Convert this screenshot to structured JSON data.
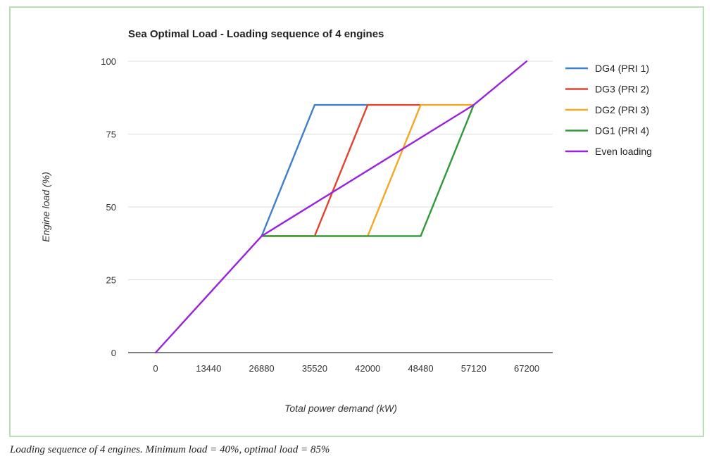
{
  "caption": "Loading sequence of 4 engines. Minimum load = 40%, optimal load = 85%",
  "chart_data": {
    "type": "line",
    "title": "Sea Optimal Load - Loading sequence of 4 engines",
    "xlabel": "Total power demand (kW)",
    "ylabel": "Engine load (%)",
    "x_categories": [
      "0",
      "13440",
      "26880",
      "35520",
      "42000",
      "48480",
      "57120",
      "67200"
    ],
    "yticks": [
      "0",
      "25",
      "50",
      "75",
      "100"
    ],
    "ylim": [
      0,
      100
    ],
    "grid": true,
    "legend_position": "right",
    "series": [
      {
        "name": "DG4 (PRI 1)",
        "color": "#3d7fc9",
        "points": [
          [
            2,
            40
          ],
          [
            3,
            85
          ],
          [
            4,
            85
          ]
        ]
      },
      {
        "name": "DG3 (PRI 2)",
        "color": "#e0442e",
        "points": [
          [
            2,
            40
          ],
          [
            3,
            40
          ],
          [
            4,
            85
          ],
          [
            5,
            85
          ]
        ]
      },
      {
        "name": "DG2 (PRI 3)",
        "color": "#f5a623",
        "points": [
          [
            2,
            40
          ],
          [
            4,
            40
          ],
          [
            5,
            85
          ],
          [
            6,
            85
          ]
        ]
      },
      {
        "name": "DG1 (PRI 4)",
        "color": "#2e9a38",
        "points": [
          [
            2,
            40
          ],
          [
            5,
            40
          ],
          [
            6,
            85
          ]
        ]
      },
      {
        "name": "Even loading",
        "color": "#9a22dc",
        "points": [
          [
            0,
            0
          ],
          [
            2,
            40
          ],
          [
            6,
            85
          ],
          [
            7,
            100
          ]
        ]
      }
    ]
  }
}
